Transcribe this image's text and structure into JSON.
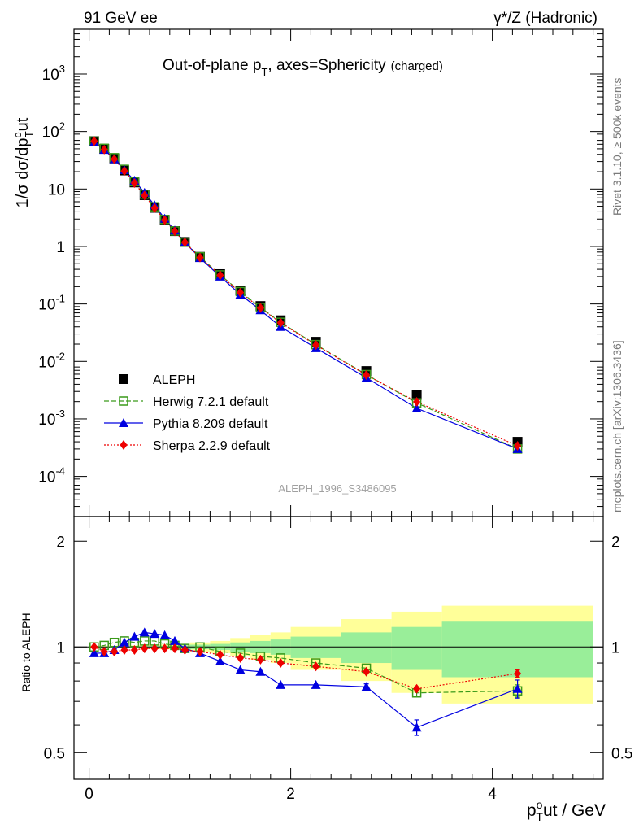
{
  "header": {
    "left_label": "91 GeV ee",
    "right_label": "γ*/Z (Hadronic)",
    "plot_title": "Out-of-plane p",
    "plot_title_sub": "T",
    "plot_title_rest": ", axes=Sphericity",
    "plot_title_small": "(charged)"
  },
  "side_text": {
    "rivet": "Rivet 3.1.10, ≥ 500k events",
    "mcplots": "mcplots.cern.ch [arXiv:1306.3436]"
  },
  "watermark": "ALEPH_1996_S3486095",
  "colors": {
    "aleph": "#000000",
    "herwig": "#3a9a1a",
    "pythia": "#0000e0",
    "sherpa": "#ee0000",
    "band_inner": "#99ee99",
    "band_outer": "#ffff99"
  },
  "chart_data": [
    {
      "type": "scatter",
      "panel": "main",
      "ylabel": "1/σ dσ/dp^o_T ut",
      "yscale": "log",
      "ylim": [
        2e-05,
        6000
      ],
      "xlim": [
        -0.15,
        5.1
      ],
      "ytick_labels": [
        "10^-4",
        "10^-3",
        "10^-2",
        "10^-1",
        "1",
        "10",
        "10^2",
        "10^3"
      ],
      "legend_position": "bottom-left",
      "x": [
        0.05,
        0.15,
        0.25,
        0.35,
        0.45,
        0.55,
        0.65,
        0.75,
        0.85,
        0.95,
        1.1,
        1.3,
        1.5,
        1.7,
        1.9,
        2.25,
        2.75,
        3.25,
        4.25
      ],
      "series": [
        {
          "name": "ALEPH",
          "label": "ALEPH",
          "style": "square",
          "values": [
            68,
            50,
            34,
            21,
            13,
            7.8,
            4.7,
            2.9,
            1.85,
            1.2,
            0.66,
            0.33,
            0.17,
            0.092,
            0.052,
            0.022,
            0.0068,
            0.0026,
            0.0004
          ]
        },
        {
          "name": "Herwig",
          "label": "Herwig 7.2.1 default",
          "style": "open-square-dashed",
          "values": [
            68,
            51,
            35,
            22,
            13.4,
            8.1,
            4.9,
            2.95,
            1.86,
            1.19,
            0.66,
            0.32,
            0.164,
            0.087,
            0.048,
            0.0196,
            0.0059,
            0.0019,
            0.0003
          ]
        },
        {
          "name": "Pythia",
          "label": "Pythia 8.209 default",
          "style": "triangle-solid",
          "values": [
            65,
            48,
            33,
            21.5,
            14,
            8.6,
            5.2,
            3.05,
            1.9,
            1.18,
            0.63,
            0.3,
            0.146,
            0.078,
            0.04,
            0.0171,
            0.0052,
            0.00153,
            0.0003
          ]
        },
        {
          "name": "Sherpa",
          "label": "Sherpa 2.2.9 default",
          "style": "diamond-dotted",
          "values": [
            68,
            48.5,
            33,
            20.5,
            12.7,
            7.7,
            4.65,
            2.87,
            1.83,
            1.18,
            0.64,
            0.315,
            0.158,
            0.085,
            0.047,
            0.0193,
            0.0058,
            0.00198,
            0.00034
          ]
        }
      ]
    },
    {
      "type": "scatter",
      "panel": "ratio",
      "xlabel": "p^o_T ut / GeV",
      "ylabel": "Ratio to ALEPH",
      "yscale": "log",
      "ylim": [
        0.42,
        2.35
      ],
      "xlim": [
        -0.15,
        5.1
      ],
      "xticks": [
        "0",
        "2",
        "4"
      ],
      "yticks": [
        "0.5",
        "1",
        "2"
      ],
      "x": [
        0.05,
        0.15,
        0.25,
        0.35,
        0.45,
        0.55,
        0.65,
        0.75,
        0.85,
        0.95,
        1.1,
        1.3,
        1.5,
        1.7,
        1.9,
        2.25,
        2.75,
        3.25,
        4.25
      ],
      "uncertainty_bins": {
        "edges": [
          0,
          0.1,
          0.2,
          0.3,
          0.4,
          0.5,
          0.6,
          0.7,
          0.8,
          0.9,
          1.0,
          1.2,
          1.4,
          1.6,
          1.8,
          2.0,
          2.5,
          3.0,
          3.5,
          5.0
        ],
        "inner": [
          0.004,
          0.004,
          0.004,
          0.005,
          0.005,
          0.006,
          0.007,
          0.008,
          0.009,
          0.01,
          0.015,
          0.02,
          0.03,
          0.04,
          0.05,
          0.07,
          0.1,
          0.14,
          0.18
        ],
        "outer": [
          0.008,
          0.008,
          0.008,
          0.009,
          0.01,
          0.012,
          0.014,
          0.016,
          0.018,
          0.02,
          0.03,
          0.04,
          0.06,
          0.08,
          0.1,
          0.14,
          0.2,
          0.26,
          0.31
        ]
      },
      "series": [
        {
          "name": "Herwig",
          "values": [
            1.0,
            1.01,
            1.03,
            1.04,
            1.03,
            1.04,
            1.04,
            1.02,
            1.01,
            0.99,
            1.0,
            0.97,
            0.96,
            0.94,
            0.93,
            0.9,
            0.87,
            0.74,
            0.75
          ],
          "errors": [
            0,
            0,
            0,
            0,
            0,
            0,
            0,
            0,
            0,
            0,
            0,
            0,
            0,
            0,
            0,
            0,
            0,
            0.02,
            0.03
          ]
        },
        {
          "name": "Pythia",
          "values": [
            0.96,
            0.96,
            0.98,
            1.03,
            1.07,
            1.1,
            1.09,
            1.08,
            1.04,
            0.99,
            0.96,
            0.91,
            0.86,
            0.85,
            0.78,
            0.78,
            0.77,
            0.59,
            0.76
          ],
          "errors": [
            0,
            0,
            0,
            0,
            0,
            0,
            0,
            0,
            0,
            0,
            0,
            0,
            0,
            0,
            0,
            0,
            0.015,
            0.03,
            0.045
          ]
        },
        {
          "name": "Sherpa",
          "values": [
            1.0,
            0.97,
            0.97,
            0.98,
            0.98,
            0.99,
            0.99,
            0.99,
            0.99,
            0.98,
            0.97,
            0.95,
            0.93,
            0.92,
            0.9,
            0.88,
            0.85,
            0.76,
            0.84
          ],
          "errors": [
            0,
            0,
            0,
            0,
            0,
            0,
            0,
            0,
            0,
            0,
            0,
            0,
            0,
            0,
            0,
            0,
            0,
            0.01,
            0.02
          ]
        }
      ]
    }
  ]
}
